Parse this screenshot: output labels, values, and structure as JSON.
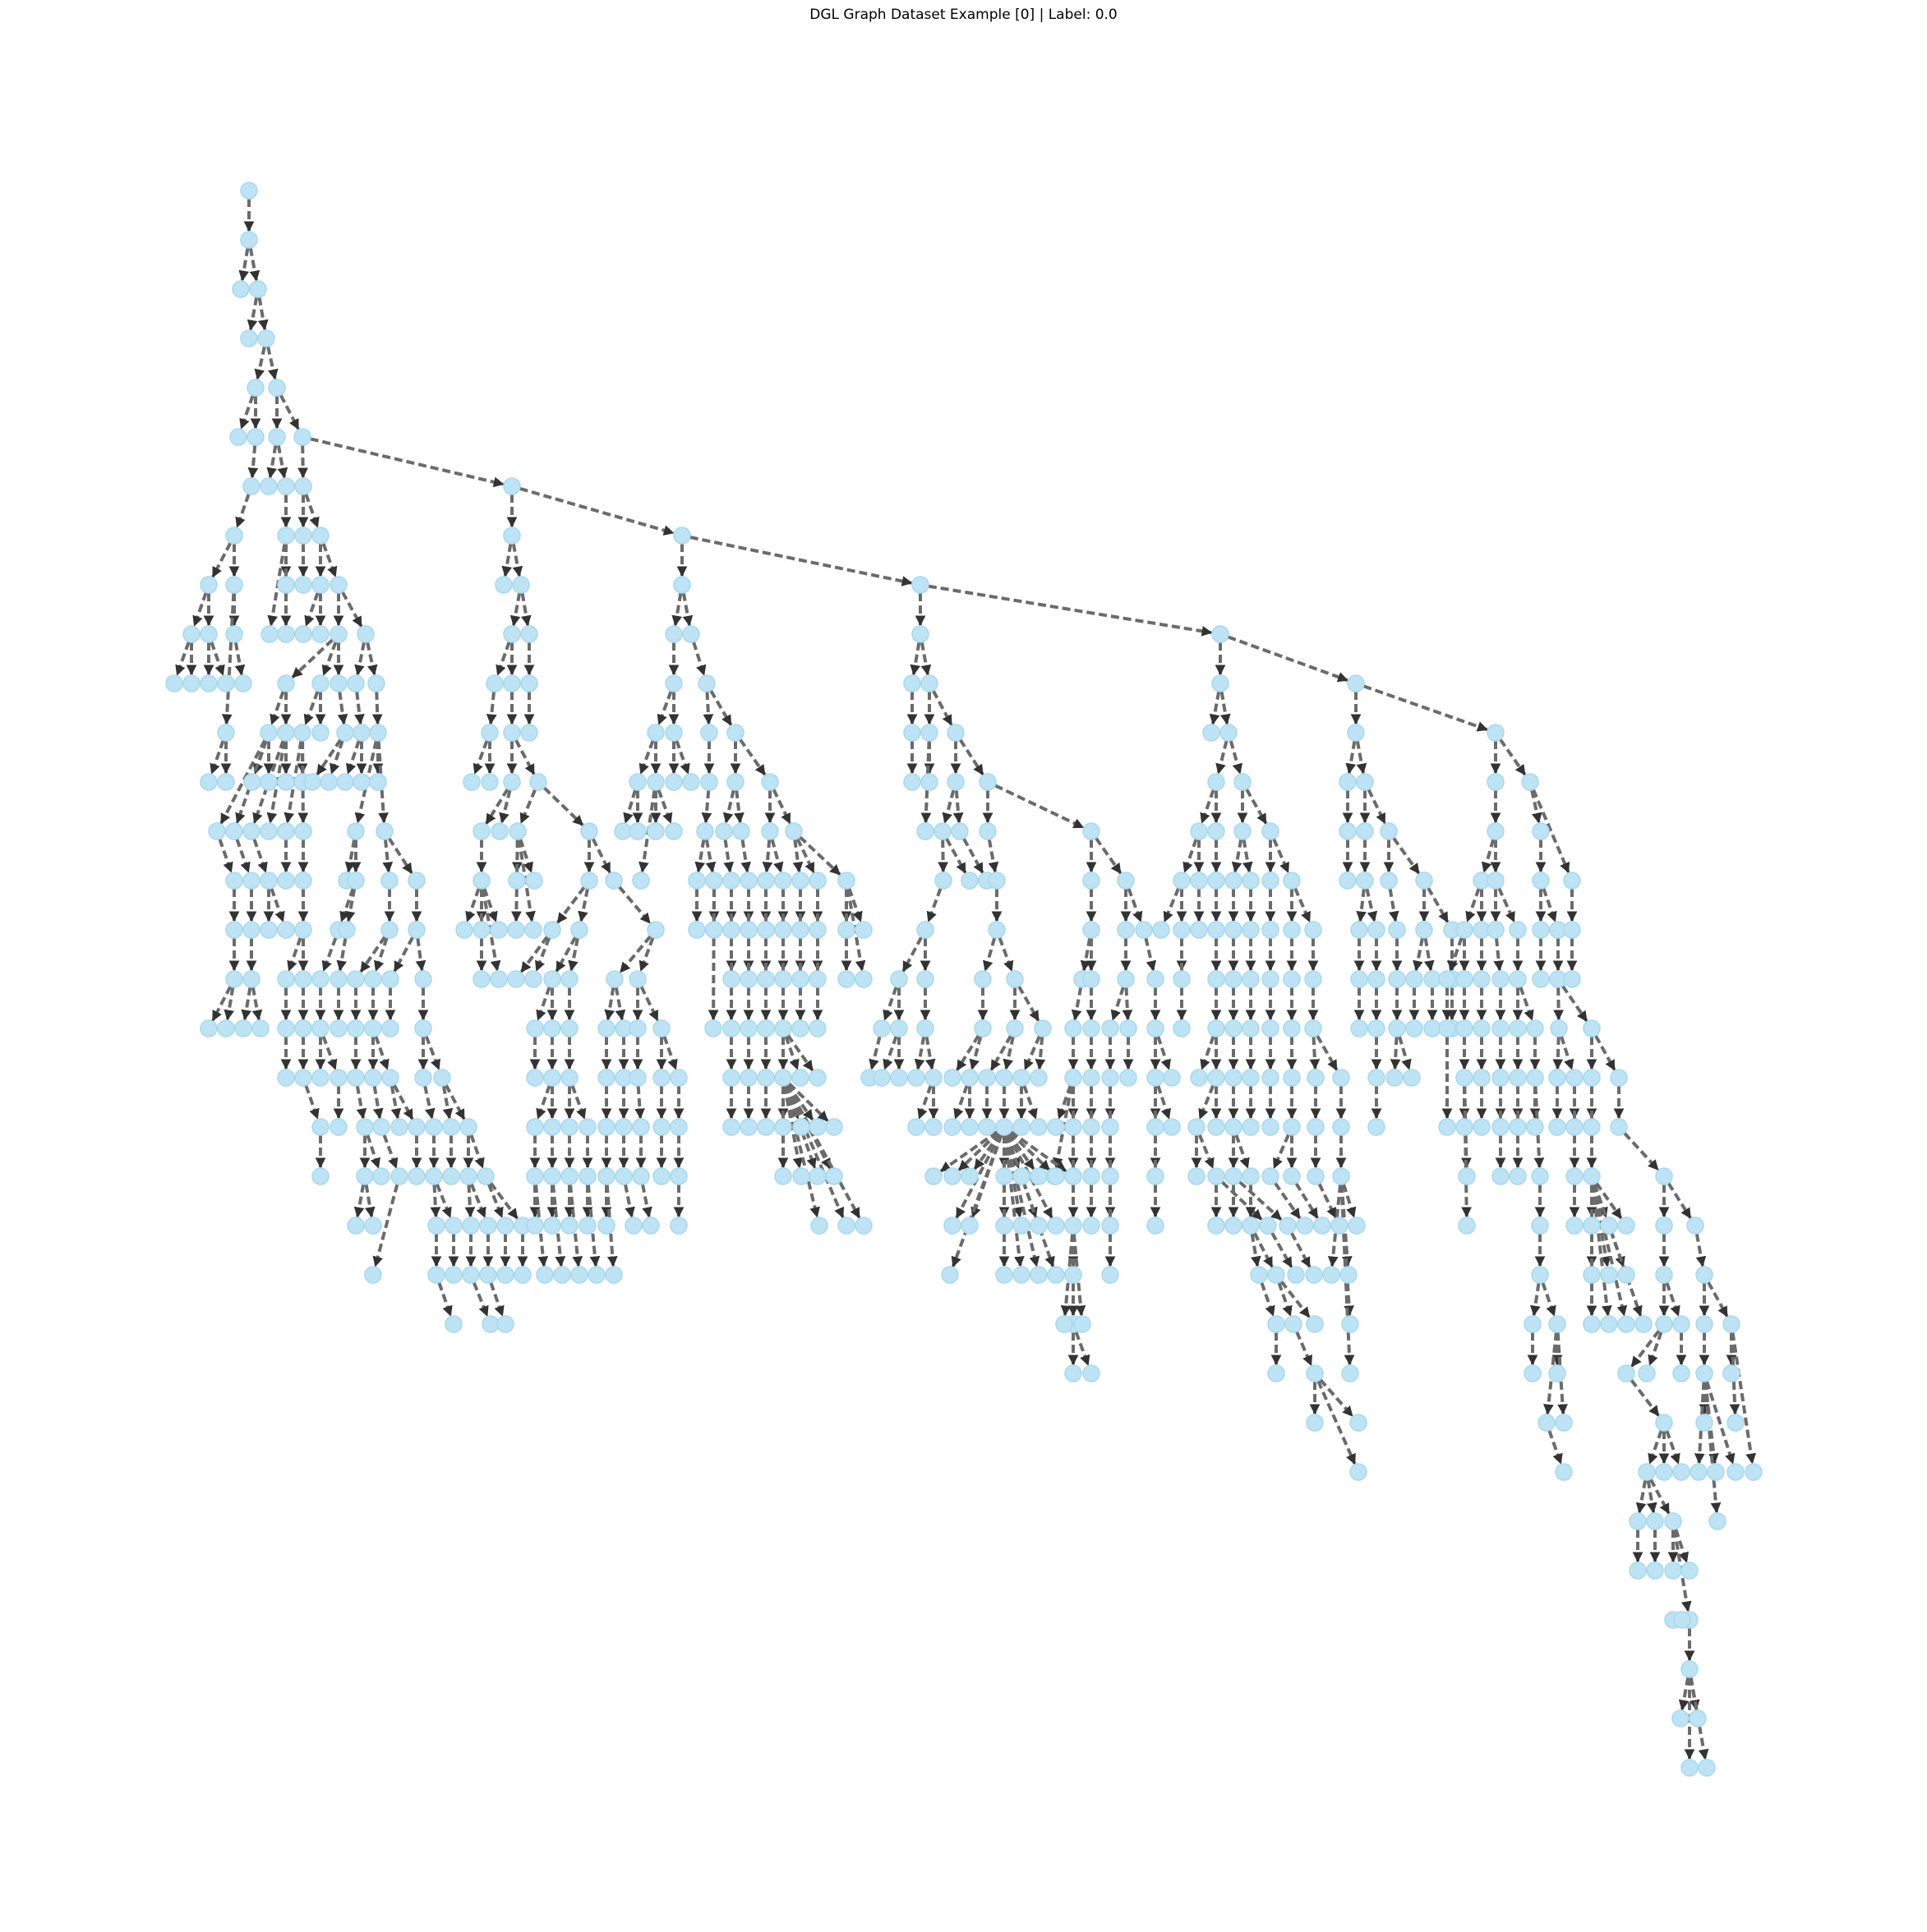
{
  "figure": {
    "title": "DGL Graph Dataset Example [0] | Label: 0.0"
  },
  "graph": {
    "layout": "hierarchical tree (top-down), directed edges with arrowheads, nodes unlabeled",
    "colors": {
      "node_fill": "#bde3f4",
      "node_stroke": "#a9d8ee",
      "edge": "#6b6b6b",
      "background": "#ffffff"
    }
  }
}
